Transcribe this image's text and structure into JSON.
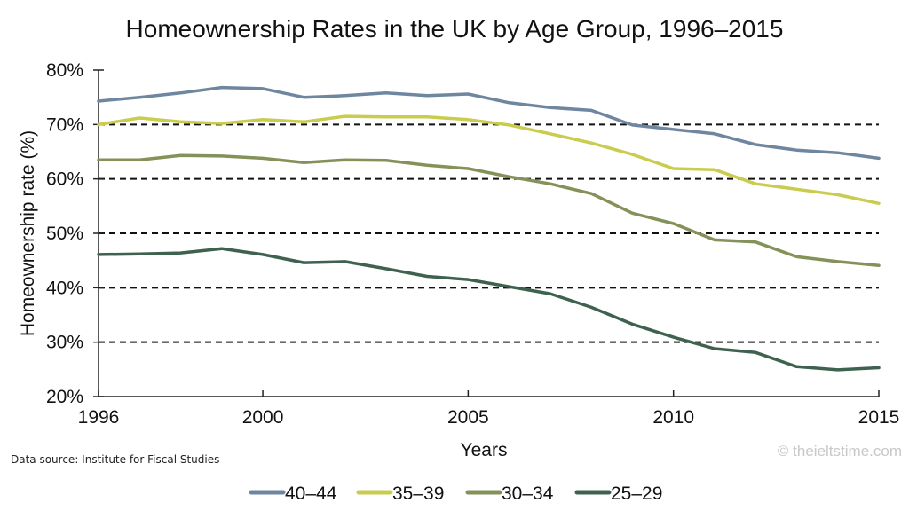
{
  "chart_data": {
    "type": "line",
    "title": "Homeownership Rates in the UK by Age Group, 1996–2015",
    "xlabel": "Years",
    "ylabel": "Homeownership rate (%)",
    "xlim": [
      1996,
      2015
    ],
    "ylim": [
      20,
      80
    ],
    "x_ticks": [
      1996,
      2000,
      2005,
      2010,
      2015
    ],
    "y_ticks": [
      20,
      30,
      40,
      50,
      60,
      70,
      80
    ],
    "y_tick_labels": [
      "20%",
      "30%",
      "40%",
      "50%",
      "60%",
      "70%",
      "80%"
    ],
    "gridlines": [
      30,
      40,
      50,
      60,
      70
    ],
    "grid": "dashed horizontal",
    "legend_position": "bottom-center",
    "x": [
      1996,
      1997,
      1998,
      1999,
      2000,
      2001,
      2002,
      2003,
      2004,
      2005,
      2006,
      2007,
      2008,
      2009,
      2010,
      2011,
      2012,
      2013,
      2014,
      2015
    ],
    "series": [
      {
        "name": "40–44",
        "color": "#6f86a0",
        "values": [
          74.3,
          75.0,
          75.8,
          76.8,
          76.6,
          75.0,
          75.3,
          75.8,
          75.3,
          75.6,
          74.0,
          73.1,
          72.6,
          69.9,
          69.1,
          68.3,
          66.3,
          65.3,
          64.8,
          63.8
        ]
      },
      {
        "name": "35–39",
        "color": "#c9cc4e",
        "values": [
          70.0,
          71.2,
          70.5,
          70.2,
          70.9,
          70.5,
          71.5,
          71.4,
          71.4,
          70.9,
          69.9,
          68.3,
          66.6,
          64.5,
          61.9,
          61.7,
          59.1,
          58.1,
          57.1,
          55.5
        ]
      },
      {
        "name": "30–34",
        "color": "#84925a",
        "values": [
          63.5,
          63.5,
          64.3,
          64.2,
          63.8,
          63.0,
          63.5,
          63.4,
          62.5,
          61.9,
          60.4,
          59.1,
          57.3,
          53.7,
          51.8,
          48.8,
          48.4,
          45.7,
          44.8,
          44.1
        ]
      },
      {
        "name": "25–29",
        "color": "#3f6250",
        "values": [
          46.1,
          46.2,
          46.4,
          47.2,
          46.1,
          44.6,
          44.8,
          43.5,
          42.1,
          41.5,
          40.2,
          38.9,
          36.4,
          33.3,
          30.9,
          28.8,
          28.1,
          25.5,
          24.9,
          25.3
        ]
      }
    ]
  },
  "footer": {
    "source": "Data source: Institute for Fiscal Studies",
    "credit": "© theieltstime.com"
  }
}
